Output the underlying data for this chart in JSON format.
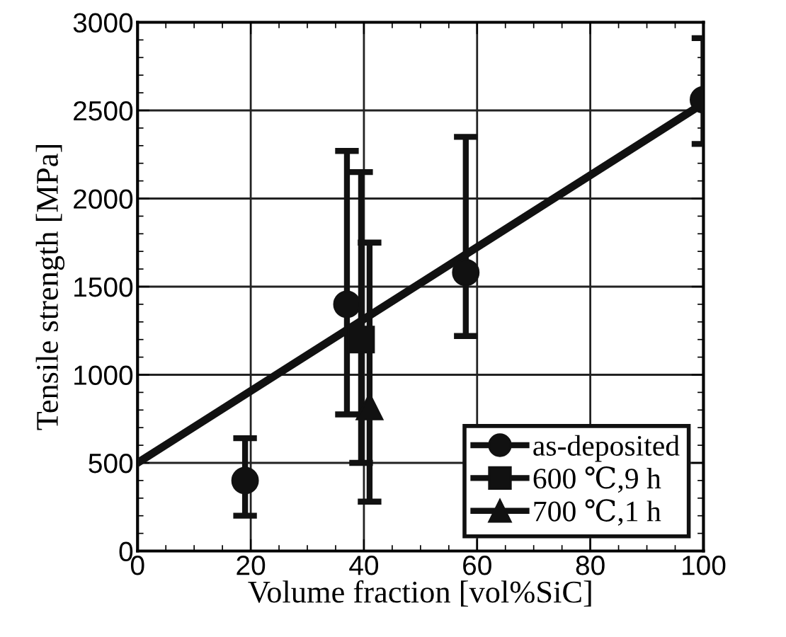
{
  "chart_data": {
    "type": "scatter",
    "xlabel": "Volume fraction [vol%SiC]",
    "ylabel": "Tensile strength [MPa]",
    "xlim": [
      0,
      100
    ],
    "ylim": [
      0,
      3000
    ],
    "xticks": [
      0,
      20,
      40,
      60,
      80,
      100
    ],
    "yticks": [
      0,
      500,
      1000,
      1500,
      2000,
      2500,
      3000
    ],
    "grid": true,
    "legend": "bottom right",
    "series": [
      {
        "name": "as-deposited",
        "color": "#111111",
        "marker": "circle",
        "x": [
          19,
          37,
          58,
          100
        ],
        "values": [
          400,
          1400,
          1580,
          2560
        ],
        "errors": [
          [
            200,
            640
          ],
          [
            775,
            2270
          ],
          [
            1220,
            2350
          ],
          [
            2310,
            2910
          ]
        ]
      },
      {
        "name": "600 ℃,9 h",
        "color": "#111111",
        "marker": "square",
        "x": [
          39.5
        ],
        "values": [
          1200
        ],
        "errors": [
          [
            500,
            2150
          ]
        ]
      },
      {
        "name": "700 ℃,1 h",
        "color": "#111111",
        "marker": "triangle",
        "x": [
          41
        ],
        "values": [
          820
        ],
        "errors": [
          [
            280,
            1750
          ]
        ]
      },
      {
        "type": "line",
        "color": "#111111",
        "marker": "none",
        "line_style": "solid",
        "x": [
          0,
          100
        ],
        "values": [
          500,
          2540
        ]
      }
    ]
  }
}
